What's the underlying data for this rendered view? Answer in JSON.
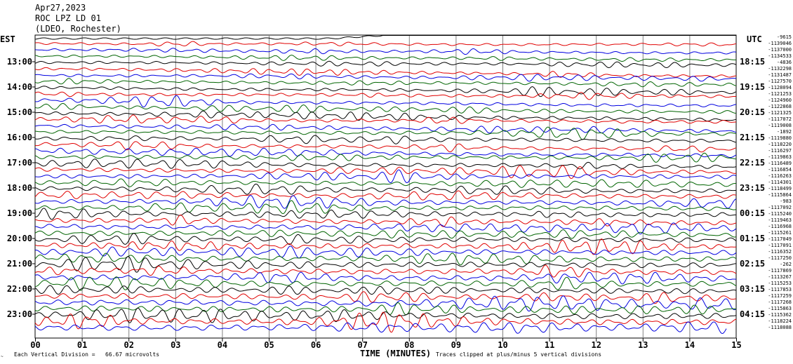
{
  "header": {
    "date": "Apr27,2023",
    "station": "ROC LPZ LD 01",
    "network": "(LDEO, Rochester)"
  },
  "left_axis_label": "EST",
  "right_axis_label": "UTC",
  "footer": {
    "scale_note": "Each Vertical Division =   66.67 microvolts",
    "clip_note": "Traces clipped at plus/minus 5 vertical divisions",
    "xlabel": "TIME (MINUTES)"
  },
  "colors": {
    "black": "#000000",
    "red": "#e00000",
    "blue": "#0000e0",
    "green": "#006400",
    "grid": "#808080"
  },
  "chart_data": {
    "type": "line",
    "title": "",
    "xlabel": "TIME (MINUTES)",
    "xlim": [
      0,
      15
    ],
    "x_ticks": [
      "00",
      "01",
      "02",
      "03",
      "04",
      "05",
      "06",
      "07",
      "08",
      "09",
      "10",
      "11",
      "12",
      "13",
      "14",
      "15"
    ],
    "traces_per_hour": 4,
    "trace_color_cycle": [
      "black",
      "red",
      "blue",
      "green"
    ],
    "est_hours": [
      "13:00",
      "14:00",
      "15:00",
      "16:00",
      "17:00",
      "18:00",
      "19:00",
      "20:00",
      "21:00",
      "22:00",
      "23:00"
    ],
    "utc_hours": [
      "18:15",
      "19:15",
      "20:15",
      "21:15",
      "22:15",
      "23:15",
      "00:15",
      "01:15",
      "02:15",
      "03:15",
      "04:15"
    ],
    "trace_offsets": [
      "-9615",
      "-1139046",
      "-1137000",
      "-1134533",
      "-4836",
      "-1132298",
      "-1131487",
      "-1127570",
      "-1128094",
      "-1121253",
      "-1124960",
      "-1122868",
      "-1121325",
      "-1117072",
      "-1119008",
      "-1892",
      "-1119880",
      "-1118220",
      "-1116297",
      "-1119863",
      "-1116489",
      "-1116854",
      "-1116263",
      "-1114301",
      "-1118499",
      "-1115864",
      "-983",
      "-1117092",
      "-1115240",
      "-1119463",
      "-1116968",
      "-1115261",
      "-1117049",
      "-1117091",
      "-1116352",
      "-1117250",
      "-262",
      "-1117869",
      "-1113267",
      "-1115253",
      "-1117853",
      "-1117259",
      "-1117268",
      "-1115863",
      "-1115362",
      "-1118224",
      "-1118088"
    ],
    "baseline_shift_divisions": [
      1.2,
      0.2,
      0.5,
      0.6,
      0.4,
      1.2,
      0.6,
      0.5,
      0.8,
      0.4,
      0.9,
      0.9,
      1.1,
      0.4,
      0.9,
      0.3,
      0.4,
      0.8,
      0.8,
      0.1,
      0.5,
      0.4,
      0.1,
      0.3,
      0.4,
      0.2,
      0.3,
      0.1,
      0.1,
      0.4,
      0.3,
      0.3,
      0.1,
      0.2,
      0.1,
      0.2,
      0.1,
      0.2,
      0.2,
      0.1,
      0.2,
      0.3,
      0.3,
      0.2,
      0.2,
      0.1,
      0.0
    ],
    "trace_end_minute": [
      15,
      15,
      15,
      15,
      15,
      15,
      15,
      15,
      15,
      15,
      15,
      15,
      15,
      15,
      15,
      15,
      15,
      15,
      15,
      15,
      15,
      15,
      15,
      15,
      15,
      15,
      15,
      15,
      15,
      15,
      15,
      15,
      15,
      15,
      15,
      15,
      15,
      15,
      15,
      15,
      15,
      15,
      15,
      15,
      15,
      15,
      14.8
    ]
  }
}
